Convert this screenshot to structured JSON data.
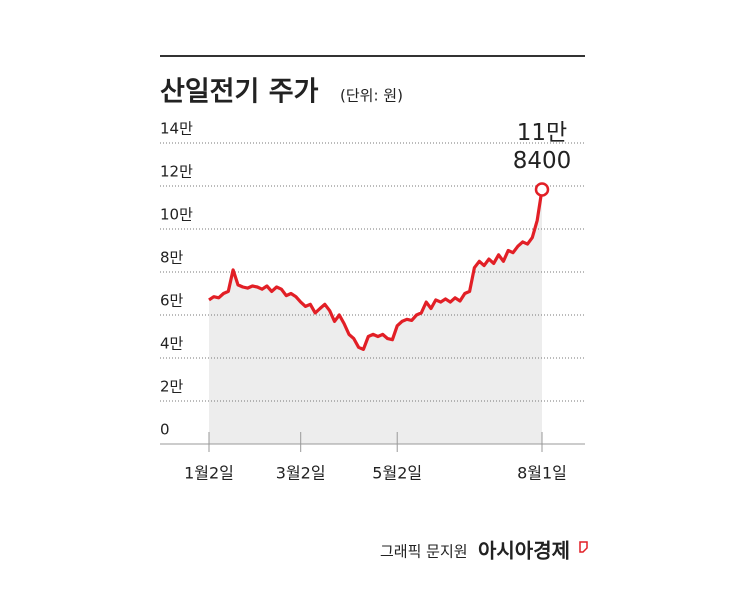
{
  "chart_data": {
    "type": "line",
    "title": "산일전기 주가",
    "subtitle": "(단위: 원)",
    "x": [
      0,
      1,
      2,
      3,
      4,
      5,
      6,
      7,
      8,
      9,
      10,
      11,
      12,
      13,
      14,
      15,
      16,
      17,
      18,
      19,
      20,
      21,
      22,
      23,
      24,
      25,
      26,
      27,
      28,
      29,
      30,
      31,
      32,
      33,
      34,
      35,
      36,
      37,
      38,
      39,
      40,
      41,
      42,
      43,
      44,
      45,
      46,
      47,
      48,
      49,
      50,
      51,
      52,
      53,
      54,
      55,
      56,
      57,
      58,
      59,
      60,
      61,
      62,
      63,
      64,
      65,
      66,
      67,
      68,
      69
    ],
    "series": [
      {
        "name": "산일전기",
        "color": "#e21f26",
        "values": [
          67000,
          68500,
          68000,
          70000,
          71000,
          81000,
          74000,
          73000,
          72500,
          73500,
          73000,
          72000,
          73500,
          71000,
          73000,
          72000,
          69000,
          70000,
          68500,
          66000,
          64000,
          65000,
          61000,
          63000,
          65000,
          62000,
          57000,
          60000,
          56000,
          51000,
          49000,
          45000,
          44000,
          50000,
          51000,
          50000,
          51000,
          49000,
          48500,
          55000,
          57000,
          58000,
          57500,
          60000,
          61000,
          66000,
          63000,
          67000,
          66000,
          67500,
          66000,
          68000,
          66500,
          70000,
          71000,
          82000,
          85000,
          83000,
          86000,
          84000,
          88000,
          85000,
          90000,
          89000,
          92000,
          94000,
          93000,
          96000,
          104000,
          118400
        ]
      }
    ],
    "xlim": [
      0,
      69
    ],
    "xticks": [
      {
        "value": 0,
        "label": "1월2일"
      },
      {
        "value": 19,
        "label": "3월2일"
      },
      {
        "value": 39,
        "label": "5월2일"
      },
      {
        "value": 69,
        "label": "8월1일"
      }
    ],
    "ylim": [
      0,
      140000
    ],
    "yticks": [
      0,
      {
        "value": 20000,
        "label": "2만"
      },
      {
        "value": 40000,
        "label": "4만"
      },
      {
        "value": 60000,
        "label": "6만"
      },
      {
        "value": 80000,
        "label": "8만"
      },
      {
        "value": 100000,
        "label": "10만"
      },
      {
        "value": 120000,
        "label": "12만"
      },
      {
        "value": 140000,
        "label": "14만"
      }
    ],
    "grid": true,
    "annotation_lines": [
      "11만",
      "8400"
    ],
    "credit": "그래픽 문지원",
    "source": "아시아경제"
  }
}
